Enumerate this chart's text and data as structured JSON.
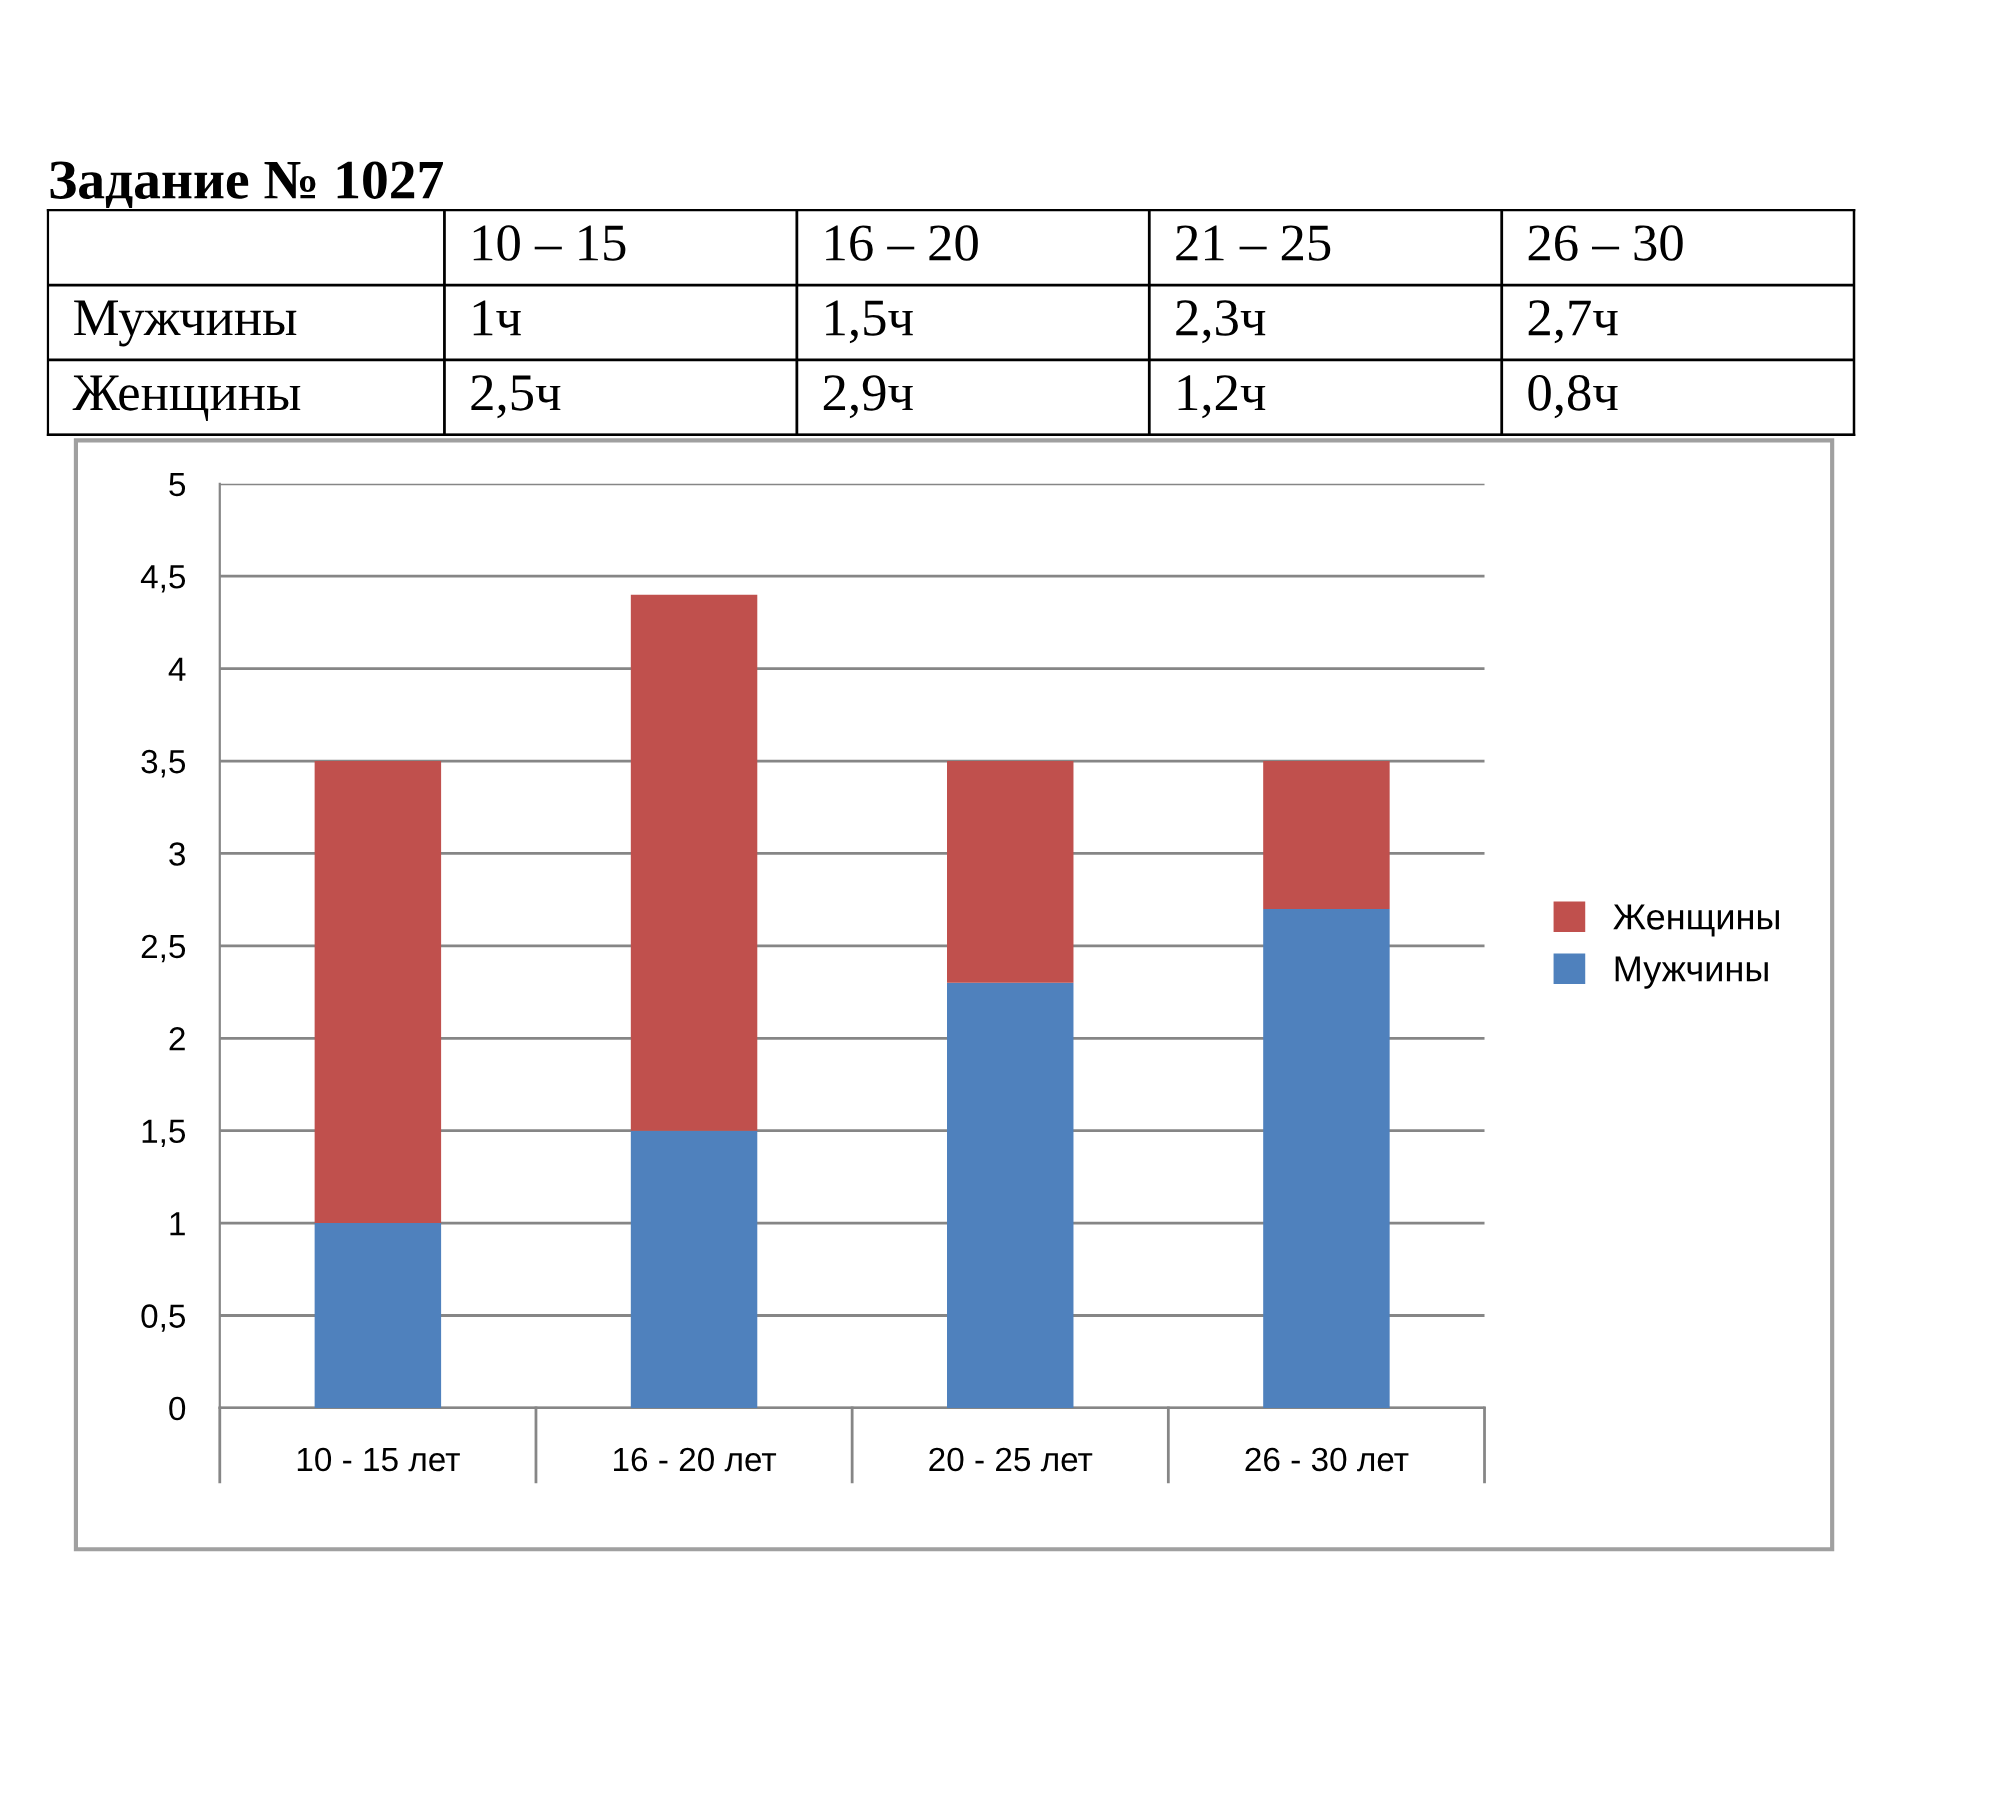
{
  "chart_data": [
    {
      "type": "other",
      "title": "Задание № 1027",
      "categories": [
        "10 – 15",
        "16 – 20",
        "21 – 25",
        "26 – 30"
      ],
      "y_categories": [
        "Мужчины",
        "Женщины"
      ],
      "cell_labels": [
        [
          "1ч",
          "1,5ч",
          "2,3ч",
          "2,7ч"
        ],
        [
          "2,5ч",
          "2,9ч",
          "1,2ч",
          "0,8ч"
        ]
      ]
    },
    {
      "type": "bar",
      "stacked": true,
      "categories": [
        "10 - 15 лет",
        "16 - 20 лет",
        "20 - 25 лет",
        "26 - 30 лет"
      ],
      "series": [
        {
          "name": "Мужчины",
          "color": "#4f81bd",
          "values": [
            1,
            1.5,
            2.3,
            2.7
          ]
        },
        {
          "name": "Женщины",
          "color": "#c0504d",
          "values": [
            2.5,
            2.9,
            1.2,
            0.8
          ]
        }
      ],
      "ylim": [
        0,
        5
      ],
      "yticks": [
        0,
        {
          "value": 0.5,
          "label": "0,5"
        },
        1,
        {
          "value": 1.5,
          "label": "1,5"
        },
        2,
        {
          "value": 2.5,
          "label": "2,5"
        },
        3,
        {
          "value": 3.5,
          "label": "3,5"
        },
        4,
        {
          "value": 4.5,
          "label": "4,5"
        },
        5
      ],
      "grid": "y",
      "legend": "right"
    }
  ]
}
